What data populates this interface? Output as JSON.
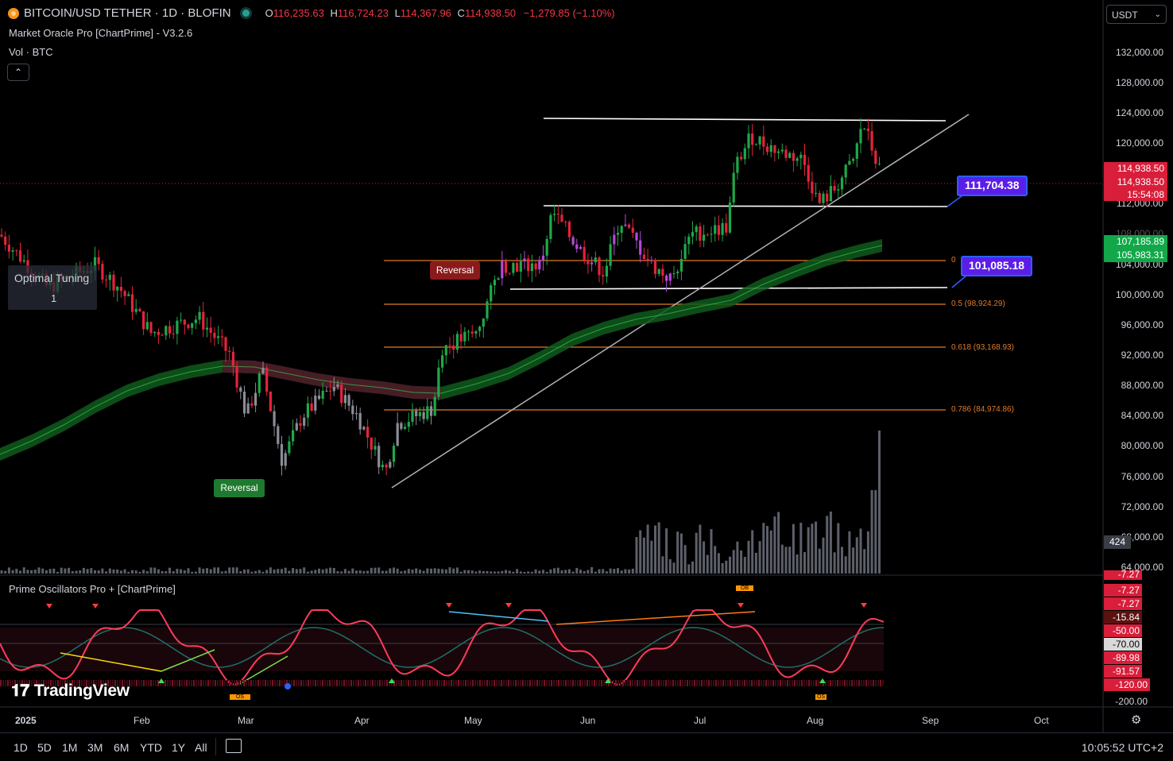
{
  "header": {
    "symbol": "BITCOIN/USD TETHER · 1D · BLOFIN",
    "o_label": "O",
    "o": "116,235.63",
    "h_label": "H",
    "h": "116,724.23",
    "l_label": "L",
    "l": "114,367.96",
    "c_label": "C",
    "c": "114,938.50",
    "change": "−1,279.85 (−1.10%)",
    "indicator": "Market Oracle Pro [ChartPrime] - V3.2.6",
    "volume": "Vol · BTC",
    "collapse_glyph": "⌃"
  },
  "currency": {
    "value": "USDT",
    "chevron": "⌄"
  },
  "tuning": {
    "title": "Optimal Tuning",
    "value": "1"
  },
  "tags": {
    "reversal_top": "Reversal",
    "reversal_bottom": "Reversal"
  },
  "price_labels": {
    "upper": "111,704.38",
    "lower": "101,085.18"
  },
  "fib_labels": {
    "zero": "0",
    "fib_05": "0.5 (98,924.29)",
    "fib_0618": "0.618 (93,168.93)",
    "fib_0786": "0.786 (84,974.86)"
  },
  "y_axis": [
    "132,000.00",
    "128,000.00",
    "124,000.00",
    "120,000.00",
    "112,000.00",
    "108,000.00",
    "104,000.00",
    "100,000.00",
    "96,000.00",
    "92,000.00",
    "88,000.00",
    "84,000.00",
    "80,000.00",
    "76,000.00",
    "72,000.00",
    "68,000.00",
    "64,000.00"
  ],
  "right_boxes": {
    "last_price": "114,938.50",
    "close_price": "114,938.50",
    "countdown": "15:54:08",
    "ma_upper": "107,185.89",
    "ma_lower": "105,983.31",
    "volume": "424"
  },
  "oscillator": {
    "title": "Prime Oscillators Pro + [ChartPrime]",
    "labels": [
      "-7.27",
      "-7.27",
      "-7.27",
      "-15.84",
      "-50.00",
      "-70.00",
      "-89.98",
      "-91.57",
      "-120.00",
      "-200.00"
    ],
    "ob": "OB",
    "os": "OS"
  },
  "x_axis": [
    "2025",
    "Feb",
    "Mar",
    "Apr",
    "May",
    "Jun",
    "Jul",
    "Aug",
    "Sep",
    "Oct"
  ],
  "timeframes": [
    "1D",
    "5D",
    "1M",
    "3M",
    "6M",
    "YTD",
    "1Y",
    "All"
  ],
  "clock": "10:05:52 UTC+2",
  "brand": "TradingView",
  "colors": {
    "up": "#1fa84a",
    "down": "#e5233b",
    "neutral": "#8a8d96",
    "accent": "#5b1ee6",
    "fib": "#e07b28"
  }
}
